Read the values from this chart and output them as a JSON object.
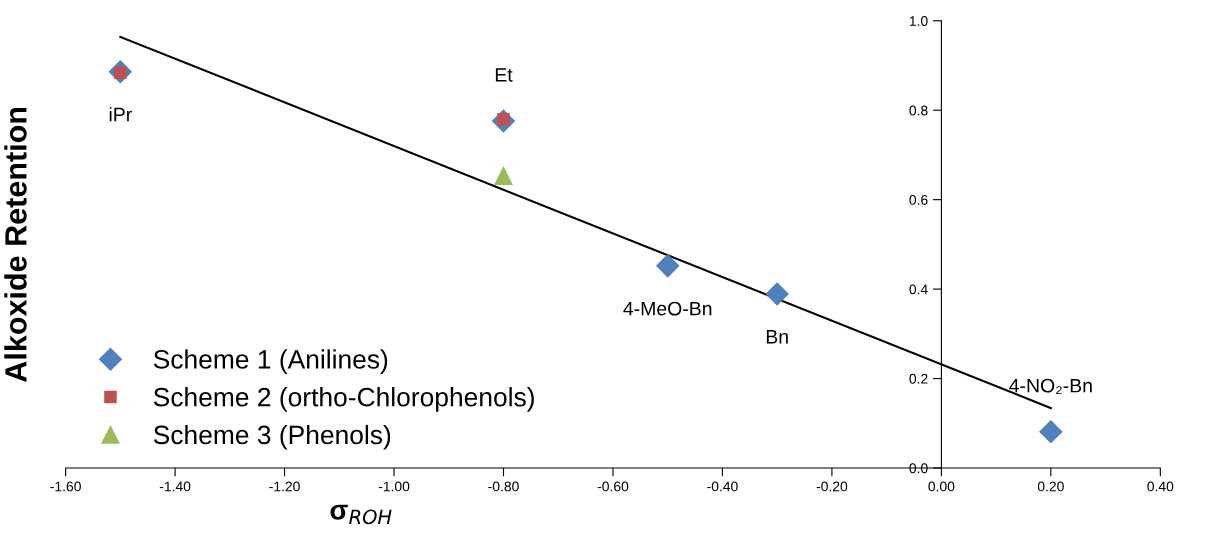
{
  "chart_data": {
    "type": "scatter",
    "xlabel": "σ$_{ROH}$",
    "ylabel": "Alkoxide Retention",
    "xlim": [
      -1.6,
      0.4
    ],
    "ylim": [
      0.0,
      1.0
    ],
    "xticks": [
      {
        "value": -1.6,
        "label": "-1.60"
      },
      {
        "value": -1.4,
        "label": "-1.40"
      },
      {
        "value": -1.2,
        "label": "-1.20"
      },
      {
        "value": -1.0,
        "label": "-1.00"
      },
      {
        "value": -0.8,
        "label": "-0.80"
      },
      {
        "value": -0.6,
        "label": "-0.60"
      },
      {
        "value": -0.4,
        "label": "-0.40"
      },
      {
        "value": -0.2,
        "label": "-0.20"
      },
      {
        "value": 0.0,
        "label": "0.00"
      },
      {
        "value": 0.2,
        "label": "0.20"
      },
      {
        "value": 0.4,
        "label": "0.40"
      }
    ],
    "yticks": [
      {
        "value": 0.0,
        "label": "0.0"
      },
      {
        "value": 0.2,
        "label": "0.2"
      },
      {
        "value": 0.4,
        "label": "0.4"
      },
      {
        "value": 0.6,
        "label": "0.6"
      },
      {
        "value": 0.8,
        "label": "0.8"
      },
      {
        "value": 1.0,
        "label": "1.0"
      }
    ],
    "series": [
      {
        "name": "Scheme 1 (Anilines)",
        "color": "#4f81bd",
        "marker": "diamond",
        "x": [
          -1.5,
          -0.8,
          -0.5,
          -0.3,
          0.2
        ],
        "values": [
          0.886,
          0.776,
          0.452,
          0.389,
          0.081
        ]
      },
      {
        "name": "Scheme 2 (ortho-Chlorophenols)",
        "color": "#c0504d",
        "marker": "square",
        "x": [
          -1.5,
          -0.8
        ],
        "values": [
          0.884,
          0.78
        ]
      },
      {
        "name": "Scheme 3 (Phenols)",
        "color": "#9bbb59",
        "marker": "triangle",
        "x": [
          -0.8
        ],
        "values": [
          0.653
        ]
      },
      {
        "type": "line",
        "color": "#000000",
        "marker": "none",
        "x": [
          -1.5,
          0.2
        ],
        "values": [
          0.964,
          0.134
        ]
      }
    ],
    "annotations": [
      {
        "text": "iPr",
        "x": -1.5,
        "y": 0.886
      },
      {
        "text": "Et",
        "x": -0.8,
        "y": 0.776
      },
      {
        "text": "4-MeO-Bn",
        "x": -0.5,
        "y": 0.452
      },
      {
        "text": "Bn",
        "x": -0.3,
        "y": 0.389
      },
      {
        "text": "4-NO₂-Bn",
        "x": 0.2,
        "y": 0.081
      }
    ],
    "legend": "bottom left",
    "grid": false
  }
}
